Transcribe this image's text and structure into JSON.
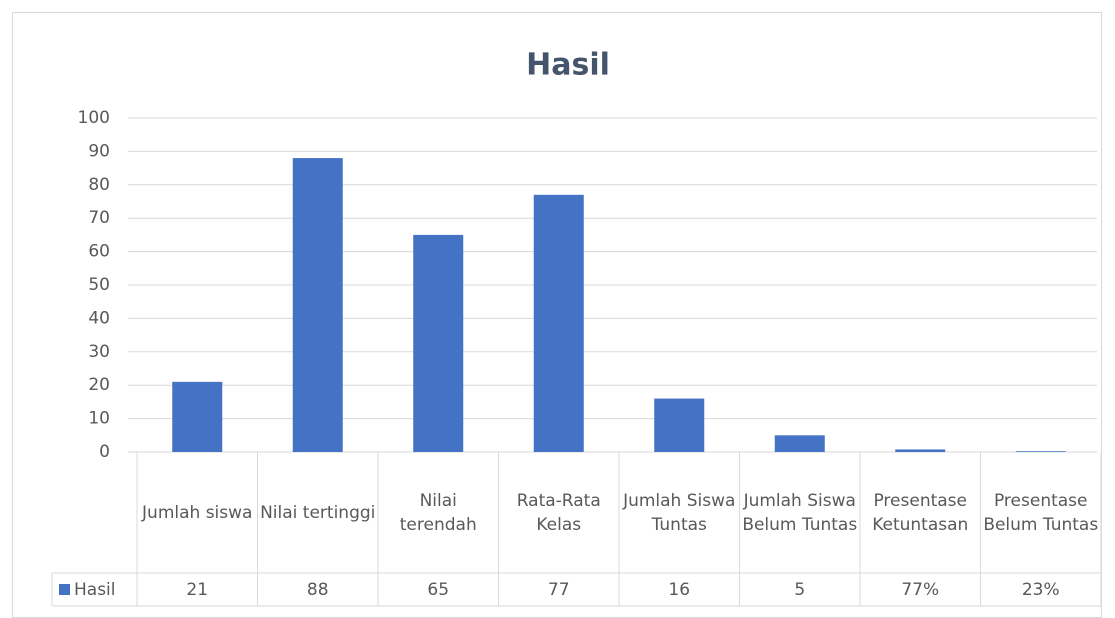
{
  "chart_data": {
    "type": "bar",
    "title": "Hasil",
    "categories": [
      "Jumlah siswa",
      "Nilai tertinggi",
      "Nilai terendah",
      "Rata-Rata Kelas",
      "Jumlah Siswa Tuntas",
      "Jumlah Siswa Belum Tuntas",
      "Presentase Ketuntasan",
      "Presentase Belum Tuntas"
    ],
    "series": [
      {
        "name": "Hasil",
        "color": "#4472c4",
        "values": [
          21,
          88,
          65,
          77,
          16,
          5,
          0.77,
          0.23
        ],
        "value_labels": [
          "21",
          "88",
          "65",
          "77",
          "16",
          "5",
          "77%",
          "23%"
        ]
      }
    ],
    "ylim": [
      0,
      100
    ],
    "yticks": [
      0,
      10,
      20,
      30,
      40,
      50,
      60,
      70,
      80,
      90,
      100
    ],
    "grid": true
  }
}
